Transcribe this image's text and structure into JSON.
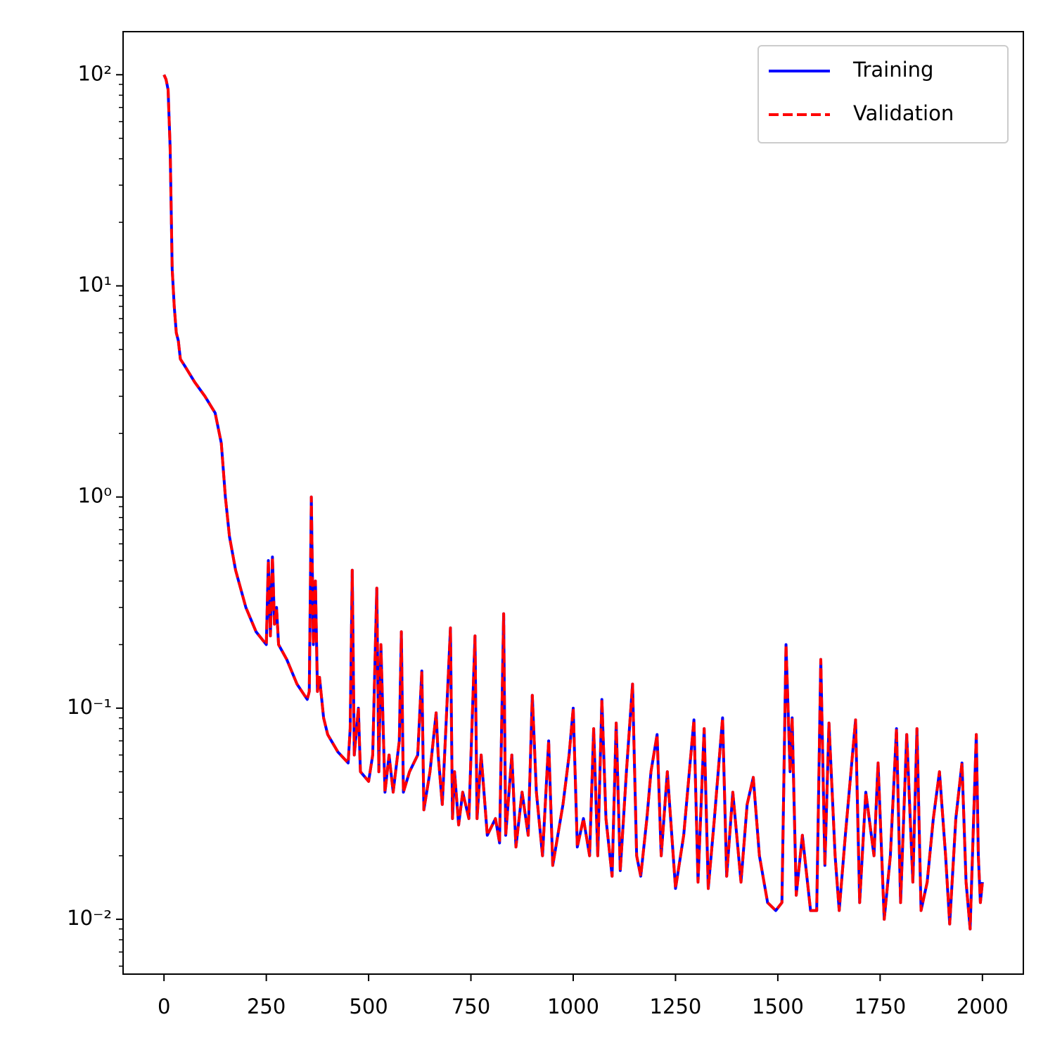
{
  "chart_data": {
    "type": "line",
    "x": [
      0,
      5,
      10,
      15,
      20,
      25,
      30,
      35,
      40,
      50,
      75,
      100,
      125,
      140,
      150,
      160,
      175,
      200,
      225,
      250,
      255,
      260,
      265,
      270,
      275,
      280,
      300,
      325,
      350,
      355,
      360,
      365,
      370,
      375,
      380,
      390,
      400,
      425,
      450,
      455,
      460,
      465,
      475,
      480,
      500,
      510,
      520,
      525,
      530,
      540,
      550,
      560,
      575,
      580,
      585,
      600,
      620,
      630,
      635,
      650,
      665,
      670,
      680,
      690,
      700,
      705,
      710,
      720,
      730,
      745,
      760,
      765,
      775,
      790,
      810,
      820,
      830,
      835,
      850,
      860,
      875,
      890,
      900,
      910,
      925,
      940,
      950,
      975,
      990,
      1000,
      1010,
      1025,
      1040,
      1050,
      1060,
      1070,
      1080,
      1095,
      1105,
      1115,
      1130,
      1145,
      1155,
      1165,
      1180,
      1190,
      1205,
      1215,
      1230,
      1250,
      1270,
      1295,
      1305,
      1320,
      1330,
      1345,
      1365,
      1375,
      1390,
      1410,
      1425,
      1440,
      1455,
      1475,
      1495,
      1510,
      1520,
      1530,
      1535,
      1545,
      1560,
      1580,
      1595,
      1605,
      1615,
      1625,
      1640,
      1650,
      1665,
      1690,
      1700,
      1715,
      1735,
      1745,
      1760,
      1775,
      1790,
      1800,
      1815,
      1830,
      1840,
      1850,
      1865,
      1880,
      1895,
      1910,
      1920,
      1935,
      1950,
      1960,
      1970,
      1985,
      1990,
      1995,
      2000
    ],
    "series": [
      {
        "name": "Training",
        "color": "#0000ff",
        "dash": false,
        "values": [
          100,
          95,
          85,
          45,
          12,
          8,
          6,
          5.5,
          4.5,
          4.2,
          3.5,
          3.0,
          2.5,
          1.8,
          1.0,
          0.65,
          0.45,
          0.3,
          0.23,
          0.2,
          0.5,
          0.22,
          0.52,
          0.25,
          0.3,
          0.2,
          0.17,
          0.13,
          0.11,
          0.12,
          1.0,
          0.2,
          0.4,
          0.12,
          0.14,
          0.09,
          0.075,
          0.062,
          0.055,
          0.08,
          0.45,
          0.06,
          0.1,
          0.05,
          0.045,
          0.06,
          0.37,
          0.05,
          0.2,
          0.04,
          0.06,
          0.04,
          0.07,
          0.23,
          0.04,
          0.05,
          0.06,
          0.15,
          0.033,
          0.05,
          0.095,
          0.06,
          0.035,
          0.09,
          0.24,
          0.03,
          0.05,
          0.028,
          0.04,
          0.03,
          0.22,
          0.03,
          0.06,
          0.025,
          0.03,
          0.023,
          0.28,
          0.025,
          0.06,
          0.022,
          0.04,
          0.025,
          0.115,
          0.04,
          0.02,
          0.07,
          0.018,
          0.035,
          0.06,
          0.1,
          0.022,
          0.03,
          0.02,
          0.08,
          0.02,
          0.11,
          0.03,
          0.016,
          0.085,
          0.017,
          0.05,
          0.13,
          0.02,
          0.016,
          0.03,
          0.05,
          0.075,
          0.02,
          0.05,
          0.014,
          0.025,
          0.088,
          0.015,
          0.08,
          0.014,
          0.03,
          0.09,
          0.016,
          0.04,
          0.015,
          0.035,
          0.047,
          0.02,
          0.012,
          0.011,
          0.012,
          0.2,
          0.05,
          0.09,
          0.013,
          0.025,
          0.011,
          0.011,
          0.17,
          0.018,
          0.085,
          0.02,
          0.011,
          0.025,
          0.088,
          0.012,
          0.04,
          0.02,
          0.055,
          0.01,
          0.02,
          0.08,
          0.012,
          0.075,
          0.015,
          0.08,
          0.011,
          0.015,
          0.03,
          0.05,
          0.02,
          0.0095,
          0.03,
          0.055,
          0.015,
          0.009,
          0.075,
          0.02,
          0.012,
          0.015
        ]
      },
      {
        "name": "Validation",
        "color": "#ff0000",
        "dash": true,
        "values": [
          100,
          95,
          85,
          45,
          12,
          8,
          6,
          5.5,
          4.5,
          4.2,
          3.5,
          3.0,
          2.5,
          1.8,
          1.0,
          0.65,
          0.45,
          0.3,
          0.23,
          0.2,
          0.5,
          0.22,
          0.52,
          0.25,
          0.3,
          0.2,
          0.17,
          0.13,
          0.11,
          0.12,
          1.0,
          0.2,
          0.4,
          0.12,
          0.14,
          0.09,
          0.075,
          0.062,
          0.055,
          0.08,
          0.45,
          0.06,
          0.1,
          0.05,
          0.045,
          0.06,
          0.37,
          0.05,
          0.2,
          0.04,
          0.06,
          0.04,
          0.07,
          0.23,
          0.04,
          0.05,
          0.06,
          0.15,
          0.033,
          0.05,
          0.095,
          0.06,
          0.035,
          0.09,
          0.24,
          0.03,
          0.05,
          0.028,
          0.04,
          0.03,
          0.22,
          0.03,
          0.06,
          0.025,
          0.03,
          0.023,
          0.28,
          0.025,
          0.06,
          0.022,
          0.04,
          0.025,
          0.115,
          0.04,
          0.02,
          0.07,
          0.018,
          0.035,
          0.06,
          0.1,
          0.022,
          0.03,
          0.02,
          0.08,
          0.02,
          0.11,
          0.03,
          0.016,
          0.085,
          0.017,
          0.05,
          0.13,
          0.02,
          0.016,
          0.03,
          0.05,
          0.075,
          0.02,
          0.05,
          0.014,
          0.025,
          0.088,
          0.015,
          0.08,
          0.014,
          0.03,
          0.09,
          0.016,
          0.04,
          0.015,
          0.035,
          0.047,
          0.02,
          0.012,
          0.011,
          0.012,
          0.2,
          0.05,
          0.09,
          0.013,
          0.025,
          0.011,
          0.011,
          0.17,
          0.018,
          0.085,
          0.02,
          0.011,
          0.025,
          0.088,
          0.012,
          0.04,
          0.02,
          0.055,
          0.01,
          0.02,
          0.08,
          0.012,
          0.075,
          0.015,
          0.08,
          0.011,
          0.015,
          0.03,
          0.05,
          0.02,
          0.0095,
          0.03,
          0.055,
          0.015,
          0.009,
          0.075,
          0.02,
          0.012,
          0.015
        ]
      }
    ],
    "xlim": [
      -100,
      2100
    ],
    "xticks": [
      0,
      250,
      500,
      750,
      1000,
      1250,
      1500,
      1750,
      2000
    ],
    "ylim": [
      0.0055,
      160
    ],
    "ylog": true,
    "yticks": [
      {
        "value": 0.01,
        "label": "10⁻²"
      },
      {
        "value": 0.1,
        "label": "10⁻¹"
      },
      {
        "value": 1,
        "label": "10⁰"
      },
      {
        "value": 10,
        "label": "10¹"
      },
      {
        "value": 100,
        "label": "10²"
      }
    ],
    "grid": false,
    "legend": "upper right"
  }
}
